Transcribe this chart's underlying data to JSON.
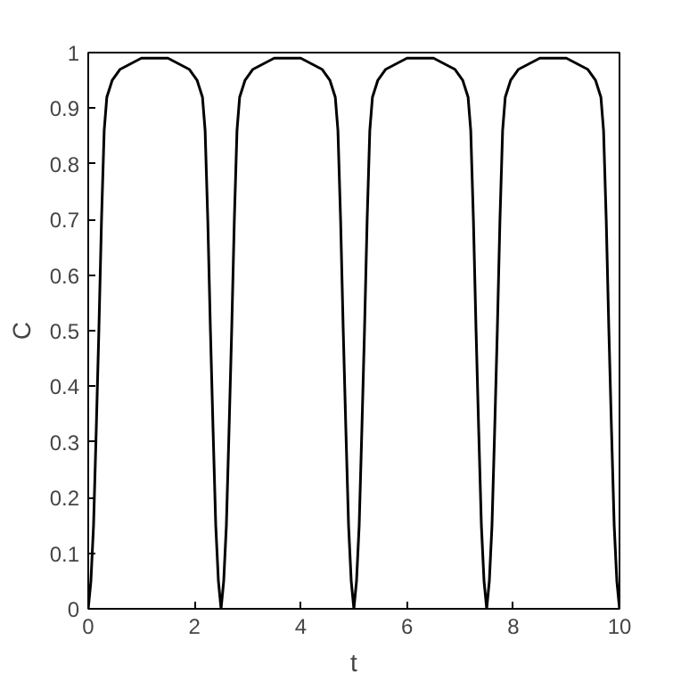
{
  "chart_data": {
    "type": "line",
    "xlabel": "t",
    "ylabel": "C",
    "xlim": [
      0,
      10
    ],
    "ylim": [
      0,
      1
    ],
    "xticks": [
      0,
      2,
      4,
      6,
      8,
      10
    ],
    "yticks": [
      0,
      0.1,
      0.2,
      0.3,
      0.4,
      0.5,
      0.6,
      0.7,
      0.8,
      0.9,
      1
    ],
    "grid": false,
    "marker": "none",
    "line_style": "solid",
    "series": [
      {
        "color": "#000000",
        "x": [
          0,
          0.05,
          0.1,
          0.15,
          0.2,
          0.25,
          0.3,
          0.35,
          0.45,
          0.6,
          0.8,
          1,
          1.25,
          1.5,
          1.7,
          1.9,
          2.05,
          2.15,
          2.2,
          2.25,
          2.3,
          2.35,
          2.4,
          2.45,
          2.5,
          2.55,
          2.6,
          2.65,
          2.7,
          2.75,
          2.8,
          2.85,
          2.95,
          3.1,
          3.3,
          3.5,
          3.75,
          4,
          4.2,
          4.4,
          4.55,
          4.65,
          4.7,
          4.75,
          4.8,
          4.85,
          4.9,
          4.95,
          5,
          5.05,
          5.1,
          5.15,
          5.2,
          5.25,
          5.3,
          5.35,
          5.45,
          5.6,
          5.8,
          6,
          6.25,
          6.5,
          6.7,
          6.9,
          7.05,
          7.15,
          7.2,
          7.25,
          7.3,
          7.35,
          7.4,
          7.45,
          7.5,
          7.55,
          7.6,
          7.65,
          7.7,
          7.75,
          7.8,
          7.85,
          7.95,
          8.1,
          8.3,
          8.5,
          8.75,
          9,
          9.2,
          9.4,
          9.55,
          9.65,
          9.7,
          9.75,
          9.8,
          9.85,
          9.9,
          9.95,
          10
        ],
        "values": [
          0,
          0.05,
          0.15,
          0.32,
          0.5,
          0.7,
          0.86,
          0.92,
          0.95,
          0.97,
          0.98,
          0.99,
          0.99,
          0.99,
          0.98,
          0.97,
          0.95,
          0.92,
          0.86,
          0.7,
          0.5,
          0.32,
          0.15,
          0.05,
          0,
          0.05,
          0.15,
          0.32,
          0.5,
          0.7,
          0.86,
          0.92,
          0.95,
          0.97,
          0.98,
          0.99,
          0.99,
          0.99,
          0.98,
          0.97,
          0.95,
          0.92,
          0.86,
          0.7,
          0.5,
          0.32,
          0.15,
          0.05,
          0,
          0.05,
          0.15,
          0.32,
          0.5,
          0.7,
          0.86,
          0.92,
          0.95,
          0.97,
          0.98,
          0.99,
          0.99,
          0.99,
          0.98,
          0.97,
          0.95,
          0.92,
          0.86,
          0.7,
          0.5,
          0.32,
          0.15,
          0.05,
          0,
          0.05,
          0.15,
          0.32,
          0.5,
          0.7,
          0.86,
          0.92,
          0.95,
          0.97,
          0.98,
          0.99,
          0.99,
          0.99,
          0.98,
          0.97,
          0.95,
          0.92,
          0.86,
          0.7,
          0.5,
          0.32,
          0.15,
          0.05,
          0
        ]
      }
    ]
  }
}
